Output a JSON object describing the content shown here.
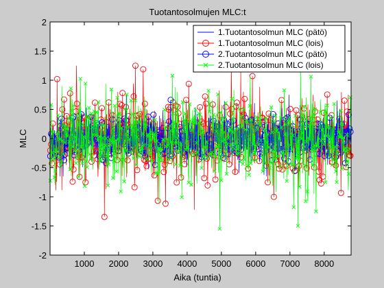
{
  "chart_data": {
    "type": "line",
    "title": "Tuotantosolmujen MLC:t",
    "xlabel": "Aika (tuntia)",
    "ylabel": "MLC",
    "xlim": [
      0,
      8784
    ],
    "ylim": [
      -2,
      2
    ],
    "xticks": [
      1000,
      2000,
      3000,
      4000,
      5000,
      6000,
      7000,
      8000
    ],
    "yticks": [
      -2,
      -1.5,
      -1,
      -0.5,
      0,
      0.5,
      1,
      1.5,
      2
    ],
    "xtick_labels": [
      "1000",
      "2000",
      "3000",
      "4000",
      "5000",
      "6000",
      "7000",
      "8000"
    ],
    "ytick_labels": [
      "-2",
      "-1.5",
      "-1",
      "-0.5",
      "0",
      "0.5",
      "1",
      "1.5",
      "2"
    ],
    "grid": false,
    "legend_position": "top-right",
    "series": [
      {
        "name": "1.Tuotantosolmun MLC (pätö)",
        "color": "#0000ff",
        "marker": "none",
        "approx_range": [
          -0.65,
          0.75
        ],
        "typical_amplitude": 0.3
      },
      {
        "name": "1.Tuotantosolmun MLC (lois)",
        "color": "#ff0000",
        "marker": "circle",
        "approx_range": [
          -1.35,
          1.25
        ],
        "typical_amplitude": 0.55
      },
      {
        "name": "2.Tuotantosolmun MLC (pätö)",
        "color": "#0000ff",
        "marker": "circle",
        "approx_range": [
          -0.65,
          0.75
        ],
        "typical_amplitude": 0.3
      },
      {
        "name": "2.Tuotantosolmun MLC (lois)",
        "color": "#00ff00",
        "marker": "x",
        "approx_range": [
          -1.55,
          1.35
        ],
        "typical_amplitude": 0.6
      }
    ]
  }
}
